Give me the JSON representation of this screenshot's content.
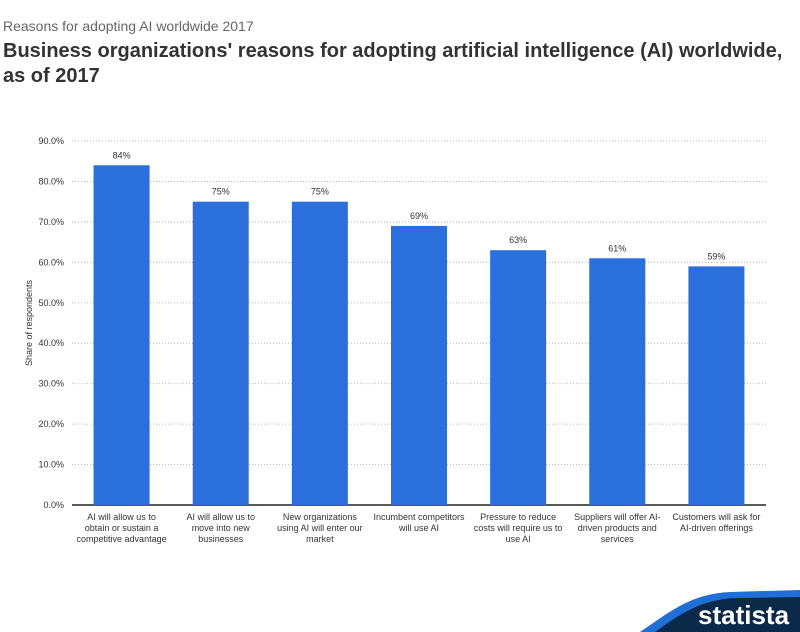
{
  "header": {
    "subtitle": "Reasons for adopting AI worldwide 2017",
    "title": "Business organizations' reasons for adopting artificial intelligence (AI) worldwide, as of 2017"
  },
  "chart_data": {
    "type": "bar",
    "ylabel": "Share of respondents",
    "ylim": [
      0,
      90
    ],
    "yticks": [
      "0.0%",
      "10.0%",
      "20.0%",
      "30.0%",
      "40.0%",
      "50.0%",
      "60.0%",
      "70.0%",
      "80.0%",
      "90.0%"
    ],
    "grid": true,
    "categories": [
      [
        "AI will allow us to",
        "obtain or sustain a",
        "competitive advantage"
      ],
      [
        "AI will allow us to",
        "move into new",
        "businesses"
      ],
      [
        "New organizations",
        "using AI will enter our",
        "market"
      ],
      [
        "Incumbent competitors",
        "will use AI"
      ],
      [
        "Pressure to reduce",
        "costs will require us to",
        "use AI"
      ],
      [
        "Suppliers will offer AI-",
        "driven products and",
        "services"
      ],
      [
        "Customers will ask for",
        "AI-driven offerings"
      ]
    ],
    "values": [
      84,
      75,
      75,
      69,
      63,
      61,
      59
    ],
    "data_labels": [
      "84%",
      "75%",
      "75%",
      "69%",
      "63%",
      "61%",
      "59%"
    ],
    "bar_color": "#2a6fdb"
  },
  "logo": {
    "text": "statista",
    "color": "#0b2a4a",
    "accent": "#1f6fd6"
  }
}
